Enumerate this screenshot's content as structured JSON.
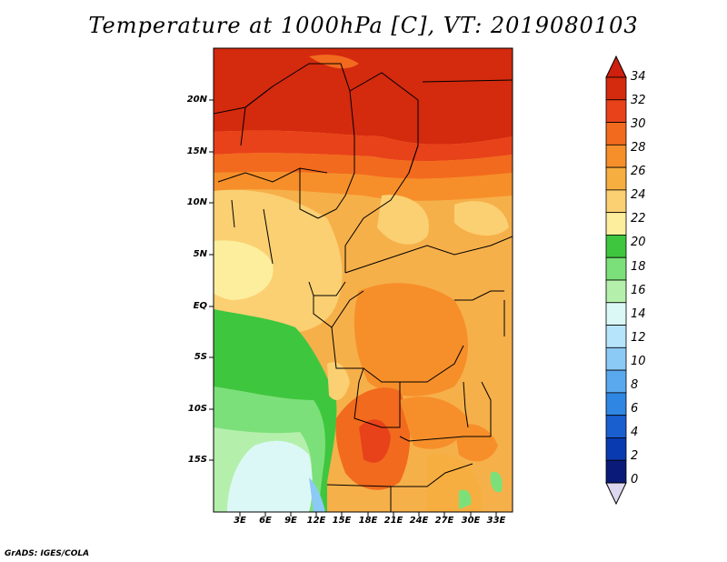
{
  "title": "Temperature at 1000hPa [C], VT: 2019080103",
  "credit": "GrADS: IGES/COLA",
  "lat_labels": [
    "20N",
    "15N",
    "10N",
    "5N",
    "EQ",
    "5S",
    "10S",
    "15S"
  ],
  "lon_labels": [
    "3E",
    "6E",
    "9E",
    "12E",
    "15E",
    "18E",
    "21E",
    "24E",
    "27E",
    "30E",
    "33E"
  ],
  "colorbar": {
    "levels": [
      "34",
      "32",
      "30",
      "28",
      "26",
      "24",
      "22",
      "20",
      "18",
      "16",
      "14",
      "12",
      "10",
      "8",
      "6",
      "4",
      "2",
      "0"
    ],
    "colors": [
      "#d42a0e",
      "#e8421a",
      "#f26a1e",
      "#f68f2a",
      "#f7ae40",
      "#fbd072",
      "#fdee9e",
      "#3fc63f",
      "#7ce07a",
      "#b4f0ac",
      "#dcf8f6",
      "#b6e4fb",
      "#8ccaf6",
      "#5aa9ef",
      "#2f86e3",
      "#1a5fd0",
      "#0a3ab0",
      "#0a1a78"
    ],
    "top_arrow_color": "#cf1f0e",
    "bottom_arrow_color": "#ddd8f0"
  }
}
